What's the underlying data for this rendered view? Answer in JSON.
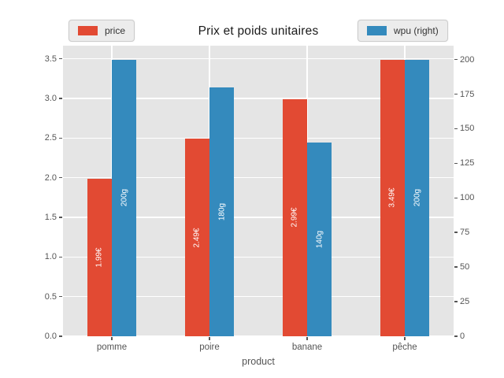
{
  "chart_data": {
    "type": "bar",
    "title": "Prix et poids unitaires",
    "xlabel": "product",
    "categories": [
      "pomme",
      "poire",
      "banane",
      "pêche"
    ],
    "series": [
      {
        "name": "price",
        "axis": "left",
        "color": "#E24A33",
        "values": [
          1.99,
          2.49,
          2.99,
          3.49
        ],
        "bar_labels": [
          "1.99€",
          "2.49€",
          "2.99€",
          "3.49€"
        ]
      },
      {
        "name": "wpu (right)",
        "axis": "right",
        "color": "#348ABD",
        "values": [
          200,
          180,
          140,
          200
        ],
        "bar_labels": [
          "200g",
          "180g",
          "140g",
          "200g"
        ]
      }
    ],
    "axes": {
      "left": {
        "tick_labels": [
          "0.0",
          "0.5",
          "1.0",
          "1.5",
          "2.0",
          "2.5",
          "3.0",
          "3.5"
        ],
        "tick_values": [
          0,
          0.5,
          1,
          1.5,
          2,
          2.5,
          3,
          3.5
        ],
        "range": [
          0,
          3.6645
        ]
      },
      "right": {
        "tick_labels": [
          "0",
          "25",
          "50",
          "75",
          "100",
          "125",
          "150",
          "175",
          "200"
        ],
        "tick_values": [
          0,
          25,
          50,
          75,
          100,
          125,
          150,
          175,
          200
        ],
        "range": [
          0,
          210
        ]
      }
    },
    "grid": true,
    "legend_position": "top",
    "colors": {
      "plot_bg": "#E5E5E5",
      "grid": "#FFFFFF",
      "tick_text": "#555555",
      "title_text": "#1a1a1a",
      "bar_label_text": "#FFFFFF"
    }
  }
}
